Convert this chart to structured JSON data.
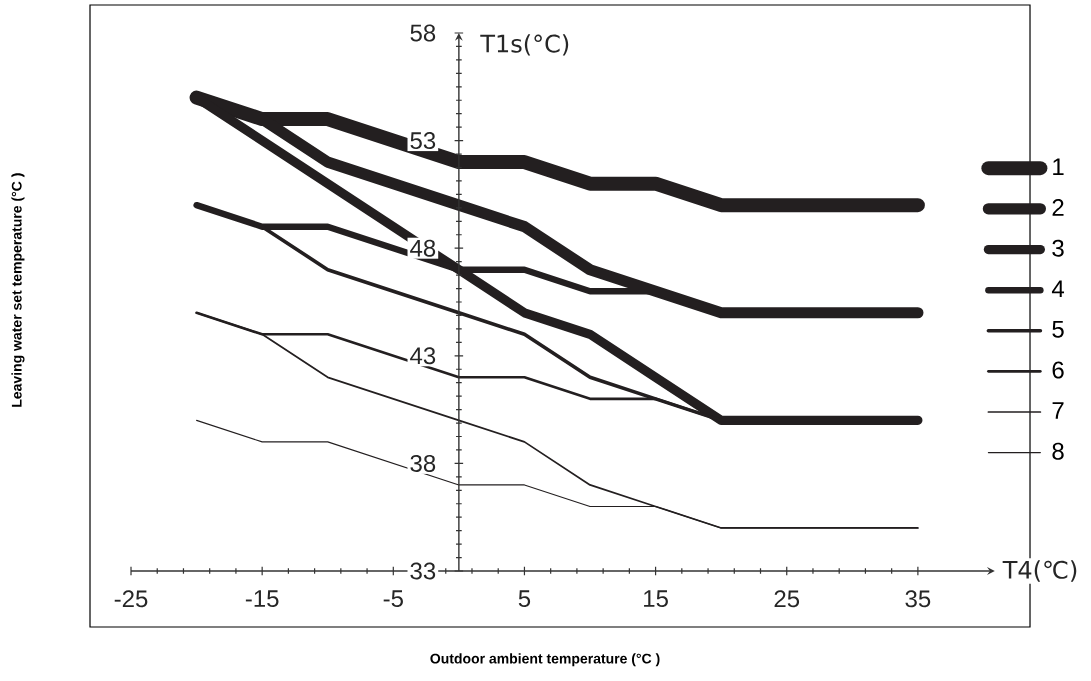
{
  "chart_data": {
    "type": "line",
    "xlabel": "T4(℃)",
    "ylabel": "T1s(°C)",
    "annotations": [
      "Outdoor ambient temperature (°C )",
      "Leaving water set temperature (°C )"
    ],
    "x": [
      -20,
      -15,
      -10,
      0,
      5,
      10,
      15,
      20,
      35
    ],
    "series": [
      {
        "name": "1",
        "color": "#231f20",
        "values": [
          55,
          54,
          54,
          52,
          52,
          51,
          51,
          50,
          50
        ]
      },
      {
        "name": "2",
        "color": "#231f20",
        "values": [
          55,
          54,
          52,
          50,
          49,
          47,
          46,
          45,
          45
        ]
      },
      {
        "name": "3",
        "color": "#231f20",
        "values": [
          55,
          null,
          null,
          47,
          45,
          44,
          42,
          40,
          40
        ]
      },
      {
        "name": "4",
        "color": "#231f20",
        "values": [
          50,
          49,
          49,
          47,
          47,
          46,
          46,
          45,
          45
        ]
      },
      {
        "name": "5",
        "color": "#231f20",
        "values": [
          50,
          49,
          47,
          45,
          44,
          42,
          41,
          40,
          40
        ]
      },
      {
        "name": "6",
        "color": "#231f20",
        "values": [
          45,
          44,
          44,
          42,
          42,
          41,
          41,
          40,
          40
        ]
      },
      {
        "name": "7",
        "color": "#231f20",
        "values": [
          45,
          44,
          42,
          40,
          39,
          37,
          36,
          35,
          35
        ]
      },
      {
        "name": "8",
        "color": "#231f20",
        "values": [
          40,
          39,
          39,
          37,
          37,
          36,
          36,
          35,
          35
        ]
      }
    ],
    "xlim": [
      -25,
      40.5
    ],
    "ylim": [
      33,
      58
    ],
    "xticks": [
      -25,
      -15,
      -5,
      5,
      15,
      25,
      35
    ],
    "yticks": [
      33,
      38,
      43,
      48,
      53,
      58
    ],
    "legend": "right"
  }
}
